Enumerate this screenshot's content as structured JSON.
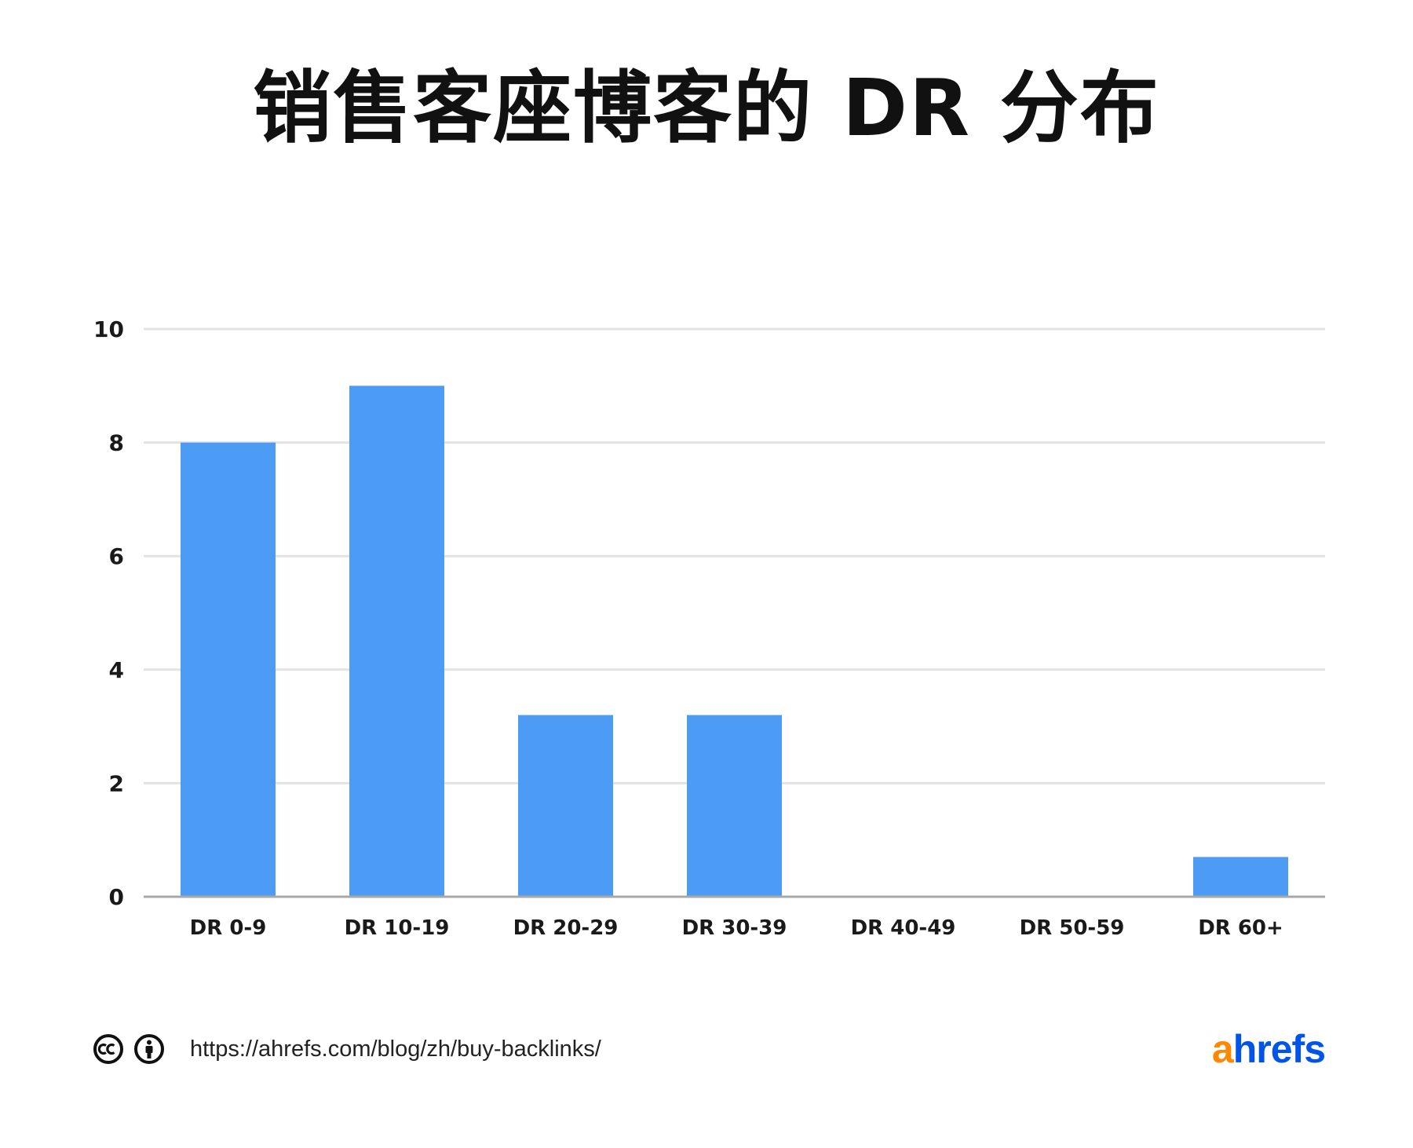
{
  "colors": {
    "bar": "#4c9bf5",
    "grid": "#e3e3e3",
    "axis": "#a8a8a8",
    "brand_orange": "#ff8800",
    "brand_blue": "#0055e8"
  },
  "chart_data": {
    "type": "bar",
    "title": "销售客座博客的 DR 分布",
    "xlabel": "",
    "ylabel": "",
    "categories": [
      "DR 0-9",
      "DR 10-19",
      "DR 20-29",
      "DR 30-39",
      "DR 40-49",
      "DR 50-59",
      "DR 60+"
    ],
    "values": [
      8,
      9,
      3.2,
      3.2,
      0,
      0,
      0.7
    ],
    "ylim": [
      0,
      10
    ],
    "yticks": [
      0,
      2,
      4,
      6,
      8,
      10
    ],
    "grid": true,
    "legend": "none"
  },
  "footer": {
    "license_icons": [
      "creative-commons-icon",
      "attribution-icon"
    ],
    "source_url": "https://ahrefs.com/blog/zh/buy-backlinks/",
    "brand_a": "a",
    "brand_rest": "hrefs"
  }
}
